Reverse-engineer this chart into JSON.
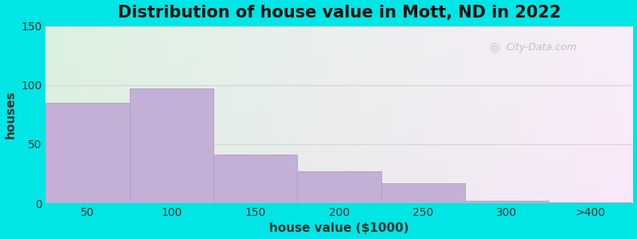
{
  "title": "Distribution of house value in Mott, ND in 2022",
  "xlabel": "house value ($1000)",
  "ylabel": "houses",
  "bin_edges": [
    0,
    1,
    2,
    3,
    4,
    5,
    6,
    7
  ],
  "tick_positions": [
    0.5,
    1.5,
    2.5,
    3.5,
    4.5,
    5.5,
    6.5
  ],
  "tick_labels": [
    "50",
    "100",
    "150",
    "200",
    "250",
    "300",
    ">400"
  ],
  "bar_heights": [
    85,
    97,
    41,
    27,
    17,
    2,
    1
  ],
  "bar_color": "#c4afd6",
  "bar_edge_color": "#b09cc4",
  "ylim": [
    0,
    150
  ],
  "yticks": [
    0,
    50,
    100,
    150
  ],
  "background_outer": "#00e5e5",
  "title_fontsize": 15,
  "axis_label_fontsize": 11,
  "tick_fontsize": 10,
  "watermark_text": "City-Data.com",
  "watermark_color": "#aabfbb",
  "grid_color": "#d0d8d0",
  "figsize": [
    8.0,
    3.0
  ],
  "dpi": 100
}
